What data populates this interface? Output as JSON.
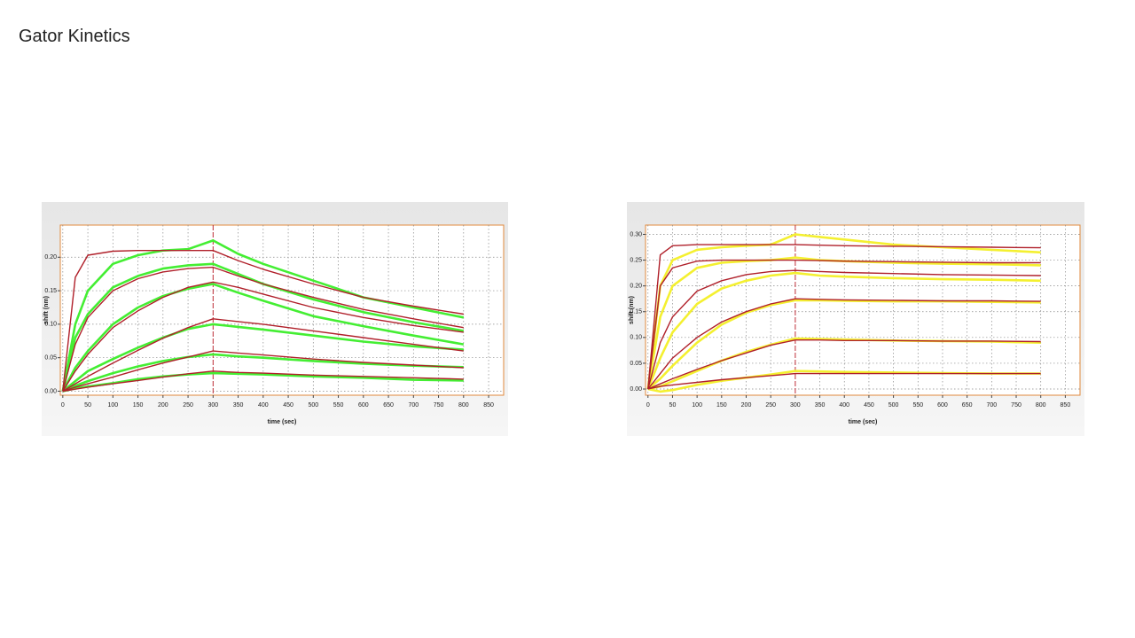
{
  "title": "Gator Kinetics",
  "chart_data": [
    {
      "type": "line",
      "xlabel": "time (sec)",
      "ylabel": "shift (nm)",
      "x": [
        0,
        25,
        50,
        100,
        150,
        200,
        250,
        300,
        350,
        400,
        500,
        600,
        700,
        800
      ],
      "xlim": [
        -5,
        880
      ],
      "xticks": [
        0,
        50,
        100,
        150,
        200,
        250,
        300,
        350,
        400,
        450,
        500,
        550,
        600,
        650,
        700,
        750,
        800,
        850
      ],
      "ylim": [
        -0.006,
        0.248
      ],
      "yticks": [
        {
          "value": 0,
          "label": "0.00"
        },
        {
          "value": 0.05,
          "label": "0.05"
        },
        {
          "value": 0.1,
          "label": "0.10"
        },
        {
          "value": 0.15,
          "label": "0.15"
        },
        {
          "value": 0.2,
          "label": "0.20"
        }
      ],
      "grid": true,
      "vline": 300,
      "series": [
        {
          "color": "#44ee33",
          "values": [
            0,
            0.1,
            0.15,
            0.19,
            0.203,
            0.21,
            0.212,
            0.225,
            0.205,
            0.19,
            0.165,
            0.14,
            0.125,
            0.11
          ]
        },
        {
          "color": "#44ee33",
          "values": [
            0,
            0.08,
            0.115,
            0.155,
            0.172,
            0.183,
            0.188,
            0.19,
            0.175,
            0.16,
            0.137,
            0.118,
            0.103,
            0.09
          ]
        },
        {
          "color": "#44ee33",
          "values": [
            0,
            0.035,
            0.06,
            0.1,
            0.125,
            0.142,
            0.153,
            0.16,
            0.147,
            0.135,
            0.112,
            0.097,
            0.083,
            0.07
          ]
        },
        {
          "color": "#44ee33",
          "values": [
            0,
            0.015,
            0.03,
            0.048,
            0.065,
            0.08,
            0.093,
            0.1,
            0.096,
            0.092,
            0.083,
            0.074,
            0.067,
            0.062
          ]
        },
        {
          "color": "#44ee33",
          "values": [
            0,
            0.008,
            0.015,
            0.027,
            0.037,
            0.045,
            0.051,
            0.055,
            0.052,
            0.05,
            0.045,
            0.041,
            0.038,
            0.036
          ]
        },
        {
          "color": "#44ee33",
          "values": [
            0,
            0.004,
            0.007,
            0.012,
            0.018,
            0.022,
            0.025,
            0.027,
            0.026,
            0.025,
            0.022,
            0.02,
            0.017,
            0.016
          ]
        },
        {
          "color": "#b0202a",
          "values": [
            0,
            0.17,
            0.203,
            0.209,
            0.21,
            0.21,
            0.21,
            0.21,
            0.195,
            0.182,
            0.16,
            0.14,
            0.127,
            0.115
          ]
        },
        {
          "color": "#b0202a",
          "values": [
            0,
            0.07,
            0.11,
            0.15,
            0.168,
            0.178,
            0.183,
            0.185,
            0.172,
            0.16,
            0.14,
            0.122,
            0.108,
            0.095
          ]
        },
        {
          "color": "#b0202a",
          "values": [
            0,
            0.03,
            0.055,
            0.095,
            0.12,
            0.14,
            0.155,
            0.163,
            0.155,
            0.145,
            0.125,
            0.11,
            0.098,
            0.088
          ]
        },
        {
          "color": "#b0202a",
          "values": [
            0,
            0.011,
            0.022,
            0.042,
            0.061,
            0.079,
            0.095,
            0.108,
            0.104,
            0.1,
            0.09,
            0.08,
            0.07,
            0.06
          ]
        },
        {
          "color": "#b0202a",
          "values": [
            0,
            0.006,
            0.011,
            0.021,
            0.032,
            0.042,
            0.051,
            0.06,
            0.057,
            0.054,
            0.048,
            0.043,
            0.039,
            0.035
          ]
        },
        {
          "color": "#b0202a",
          "values": [
            0,
            0.003,
            0.006,
            0.011,
            0.016,
            0.021,
            0.026,
            0.03,
            0.028,
            0.027,
            0.024,
            0.022,
            0.02,
            0.018
          ]
        }
      ]
    },
    {
      "type": "line",
      "xlabel": "time (sec)",
      "ylabel": "shift (nm)",
      "x": [
        0,
        25,
        50,
        100,
        150,
        200,
        250,
        300,
        350,
        400,
        500,
        600,
        700,
        800
      ],
      "xlim": [
        -5,
        880
      ],
      "xticks": [
        0,
        50,
        100,
        150,
        200,
        250,
        300,
        350,
        400,
        450,
        500,
        550,
        600,
        650,
        700,
        750,
        800,
        850
      ],
      "ylim": [
        -0.012,
        0.318
      ],
      "yticks": [
        {
          "value": 0,
          "label": "0.00"
        },
        {
          "value": 0.05,
          "label": "0.05"
        },
        {
          "value": 0.1,
          "label": "0.10"
        },
        {
          "value": 0.15,
          "label": "0.15"
        },
        {
          "value": 0.2,
          "label": "0.20"
        },
        {
          "value": 0.25,
          "label": "0.25"
        },
        {
          "value": 0.3,
          "label": "0.30"
        }
      ],
      "grid": true,
      "vline": 300,
      "series": [
        {
          "color": "#f4f030",
          "values": [
            0,
            0.2,
            0.25,
            0.27,
            0.275,
            0.278,
            0.28,
            0.3,
            0.295,
            0.29,
            0.28,
            0.275,
            0.27,
            0.265
          ]
        },
        {
          "color": "#f4f030",
          "values": [
            0,
            0.14,
            0.2,
            0.235,
            0.245,
            0.248,
            0.25,
            0.255,
            0.25,
            0.248,
            0.245,
            0.243,
            0.242,
            0.24
          ]
        },
        {
          "color": "#f4f030",
          "values": [
            0,
            0.06,
            0.11,
            0.165,
            0.195,
            0.21,
            0.22,
            0.225,
            0.22,
            0.218,
            0.215,
            0.213,
            0.212,
            0.21
          ]
        },
        {
          "color": "#f4f030",
          "values": [
            0,
            0.02,
            0.045,
            0.09,
            0.125,
            0.148,
            0.163,
            0.172,
            0.172,
            0.171,
            0.17,
            0.17,
            0.169,
            0.168
          ]
        },
        {
          "color": "#f4f030",
          "values": [
            0,
            0.005,
            0.015,
            0.035,
            0.055,
            0.072,
            0.086,
            0.098,
            0.097,
            0.096,
            0.094,
            0.093,
            0.092,
            0.09
          ]
        },
        {
          "color": "#f4f030",
          "values": [
            0,
            -0.005,
            -0.002,
            0.008,
            0.016,
            0.022,
            0.028,
            0.035,
            0.034,
            0.033,
            0.032,
            0.031,
            0.03,
            0.03
          ]
        },
        {
          "color": "#b0202a",
          "values": [
            0,
            0.26,
            0.278,
            0.28,
            0.28,
            0.28,
            0.28,
            0.28,
            0.279,
            0.278,
            0.277,
            0.276,
            0.275,
            0.274
          ]
        },
        {
          "color": "#b0202a",
          "values": [
            0,
            0.2,
            0.235,
            0.248,
            0.25,
            0.25,
            0.25,
            0.25,
            0.249,
            0.248,
            0.247,
            0.246,
            0.245,
            0.245
          ]
        },
        {
          "color": "#b0202a",
          "values": [
            0,
            0.09,
            0.14,
            0.19,
            0.21,
            0.222,
            0.228,
            0.23,
            0.228,
            0.226,
            0.224,
            0.222,
            0.221,
            0.22
          ]
        },
        {
          "color": "#b0202a",
          "values": [
            0,
            0.03,
            0.06,
            0.1,
            0.13,
            0.15,
            0.165,
            0.175,
            0.174,
            0.173,
            0.172,
            0.171,
            0.171,
            0.17
          ]
        },
        {
          "color": "#b0202a",
          "values": [
            0,
            0.01,
            0.02,
            0.038,
            0.055,
            0.07,
            0.085,
            0.095,
            0.095,
            0.094,
            0.094,
            0.093,
            0.093,
            0.092
          ]
        },
        {
          "color": "#b0202a",
          "values": [
            0,
            0.005,
            0.008,
            0.013,
            0.018,
            0.022,
            0.026,
            0.03,
            0.03,
            0.03,
            0.03,
            0.03,
            0.03,
            0.03
          ]
        }
      ]
    }
  ]
}
